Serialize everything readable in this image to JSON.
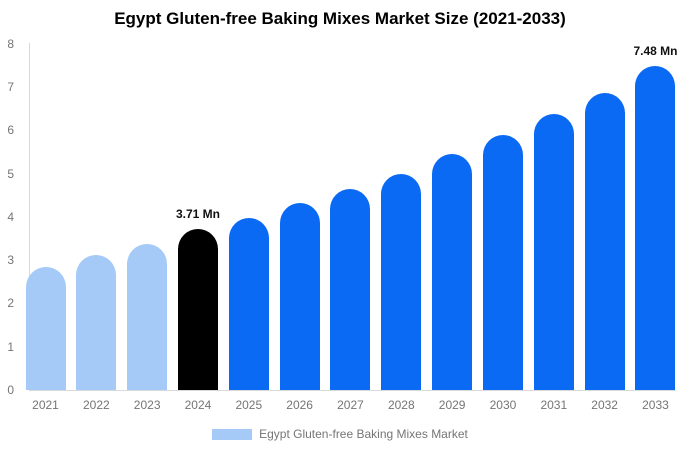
{
  "chart_data": {
    "type": "bar",
    "title": "Egypt Gluten-free Baking Mixes Market Size (2021-2033)",
    "xlabel": "",
    "ylabel": "",
    "unit": "Mn",
    "categories": [
      "2021",
      "2022",
      "2023",
      "2024",
      "2025",
      "2026",
      "2027",
      "2028",
      "2029",
      "2030",
      "2031",
      "2032",
      "2033"
    ],
    "values": [
      2.85,
      3.12,
      3.38,
      3.71,
      3.97,
      4.31,
      4.64,
      5.0,
      5.44,
      5.88,
      6.38,
      6.87,
      7.48
    ],
    "bar_roles": [
      "historical",
      "historical",
      "historical",
      "base_year",
      "forecast",
      "forecast",
      "forecast",
      "forecast",
      "forecast",
      "forecast",
      "forecast",
      "forecast",
      "forecast"
    ],
    "ylim": [
      0,
      8
    ],
    "yticks": [
      0,
      1,
      2,
      3,
      4,
      5,
      6,
      7,
      8
    ],
    "grid": false,
    "annotations": [
      {
        "category": "2024",
        "text": "3.71 Mn"
      },
      {
        "category": "2033",
        "text": "7.48 Mn"
      }
    ],
    "legend": {
      "position": "bottom-center",
      "label": "Egypt Gluten-free Baking Mixes Market",
      "swatch_color": "#a5caf7"
    },
    "colors": {
      "historical": "#a5caf7",
      "base_year": "#000000",
      "forecast": "#0b6af3",
      "axis_line": "#d9d9d9",
      "tick_text": "#757575",
      "annotation_text": "#111111",
      "background": "#ffffff"
    }
  }
}
